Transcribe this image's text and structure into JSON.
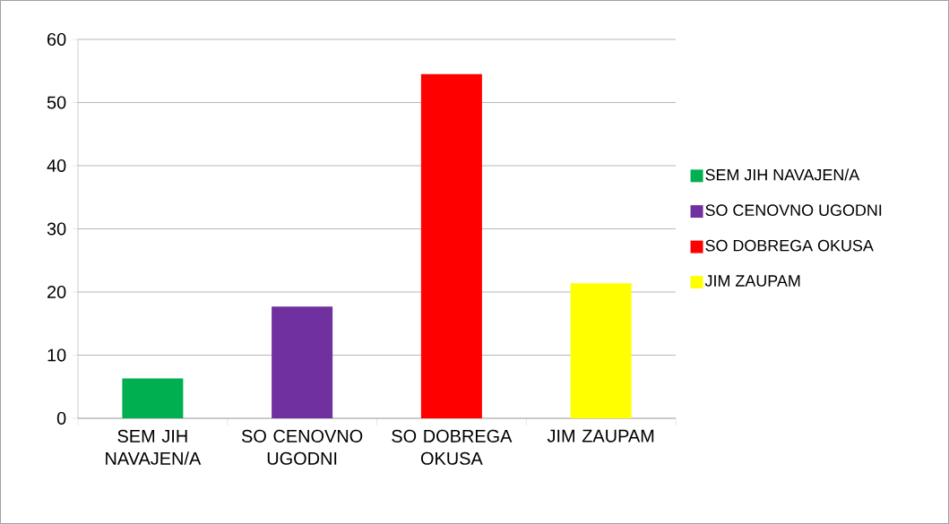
{
  "chart_data": {
    "type": "bar",
    "categories": [
      "SEM JIH NAVAJEN/A",
      "SO CENOVNO UGODNI",
      "SO DOBREGA OKUSA",
      "JIM ZAUPAM"
    ],
    "series": [
      {
        "name": "SEM JIH NAVAJEN/A",
        "color": "#00b050",
        "values": [
          6.3,
          null,
          null,
          null
        ]
      },
      {
        "name": "SO CENOVNO UGODNI",
        "color": "#7030a0",
        "values": [
          null,
          17.7,
          null,
          null
        ]
      },
      {
        "name": "SO DOBREGA OKUSA",
        "color": "#ff0000",
        "values": [
          null,
          null,
          54.5,
          null
        ]
      },
      {
        "name": "JIM ZAUPAM",
        "color": "#ffff00",
        "values": [
          null,
          null,
          null,
          21.4
        ]
      }
    ],
    "ylim": [
      0,
      60
    ],
    "yticks": [
      0,
      10,
      20,
      30,
      40,
      50,
      60
    ],
    "grid": "y",
    "legend": "right"
  }
}
